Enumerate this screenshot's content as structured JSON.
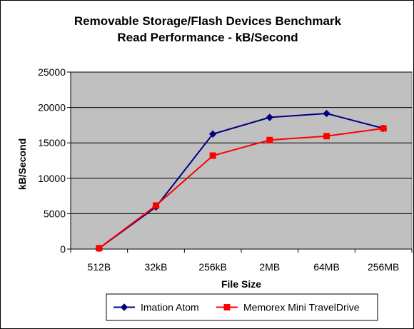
{
  "chart_data": {
    "type": "line",
    "title": [
      "Removable Storage/Flash Devices Benchmark",
      "Read Performance - kB/Second"
    ],
    "xlabel": "File Size",
    "ylabel": "kB/Second",
    "categories": [
      "512B",
      "32kB",
      "256kB",
      "2MB",
      "64MB",
      "256MB"
    ],
    "ylim": [
      0,
      25000
    ],
    "yticks": [
      0,
      5000,
      10000,
      15000,
      20000,
      25000
    ],
    "ytick_labels": [
      "0",
      "5000",
      "10000",
      "15000",
      "20000",
      "25000"
    ],
    "grid": true,
    "legend_position": "bottom",
    "plot_background": "#c0c0c0",
    "series": [
      {
        "name": "Imation Atom",
        "color": "#000080",
        "marker": "diamond",
        "values": [
          100,
          5950,
          16250,
          18600,
          19150,
          17050
        ]
      },
      {
        "name": "Memorex Mini TravelDrive",
        "color": "#ff0000",
        "marker": "square",
        "values": [
          120,
          6150,
          13200,
          15400,
          15950,
          17050
        ]
      }
    ]
  }
}
